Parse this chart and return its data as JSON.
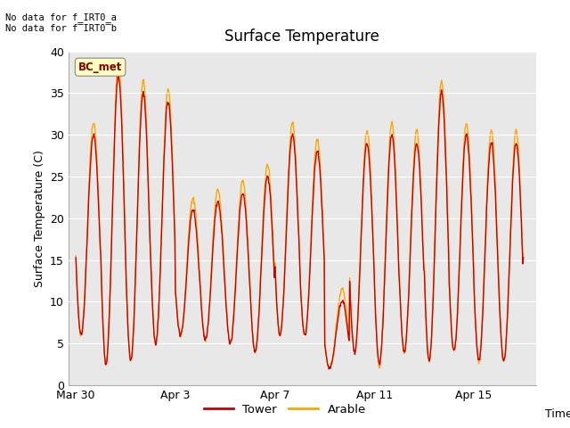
{
  "title": "Surface Temperature",
  "ylabel": "Surface Temperature (C)",
  "xlabel": "Time",
  "ylim": [
    0,
    40
  ],
  "xtick_labels": [
    "Mar 30",
    "Apr 3",
    "Apr 7",
    "Apr 11",
    "Apr 15"
  ],
  "xtick_days": [
    0,
    4,
    8,
    12,
    16
  ],
  "annotation_text": "No data for f_IRT0_a\nNo data for f̅IRT0̅b",
  "legend_label_tower": "Tower",
  "legend_label_arable": "Arable",
  "legend_box_text": "BC_met",
  "tower_color": "#cc0000",
  "arable_color": "#ffa500",
  "bg_color": "#e8e8e8",
  "grid_color": "#ffffff",
  "linewidth": 1.0,
  "total_days": 18.0
}
